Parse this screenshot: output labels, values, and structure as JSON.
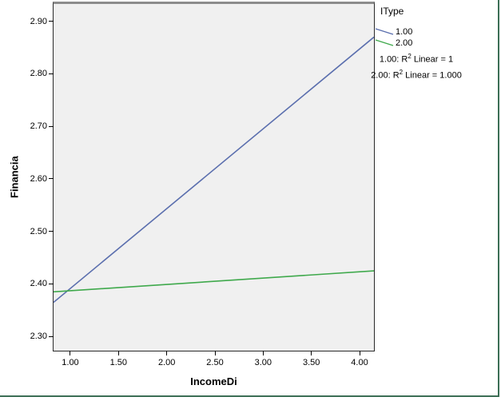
{
  "window": {
    "bg": "#ffffff",
    "edge_color": "#3c6e55"
  },
  "chart_data": {
    "type": "line",
    "title": "",
    "xlabel": "IncomeDi",
    "ylabel": "Financia",
    "xlim": [
      0.826,
      4.149
    ],
    "ylim": [
      2.273,
      2.933
    ],
    "xticks": [
      "1.00",
      "1.50",
      "2.00",
      "2.50",
      "3.00",
      "3.50",
      "4.00"
    ],
    "yticks": [
      "2.30",
      "2.40",
      "2.50",
      "2.60",
      "2.70",
      "2.80",
      "2.90"
    ],
    "grid": false,
    "plot_bg": "#f0f0f0",
    "frame_color": "#2a2a2a",
    "series": [
      {
        "name": "1.00",
        "color": "#5b6fae",
        "x": [
          0.826,
          4.149
        ],
        "y": [
          2.365,
          2.87
        ]
      },
      {
        "name": "2.00",
        "color": "#3fa94c",
        "x": [
          0.826,
          4.149
        ],
        "y": [
          2.385,
          2.425
        ]
      }
    ]
  },
  "legend": {
    "title": "IType",
    "items": [
      {
        "label": "1.00",
        "color": "#5b6fae"
      },
      {
        "label": "2.00",
        "color": "#3fa94c"
      }
    ],
    "annotations": [
      {
        "prefix": "1.00: R",
        "sup": "2",
        "suffix": " Linear = 1"
      },
      {
        "prefix": "2.00: R",
        "sup": "2",
        "suffix": " Linear = 1.000"
      }
    ]
  }
}
